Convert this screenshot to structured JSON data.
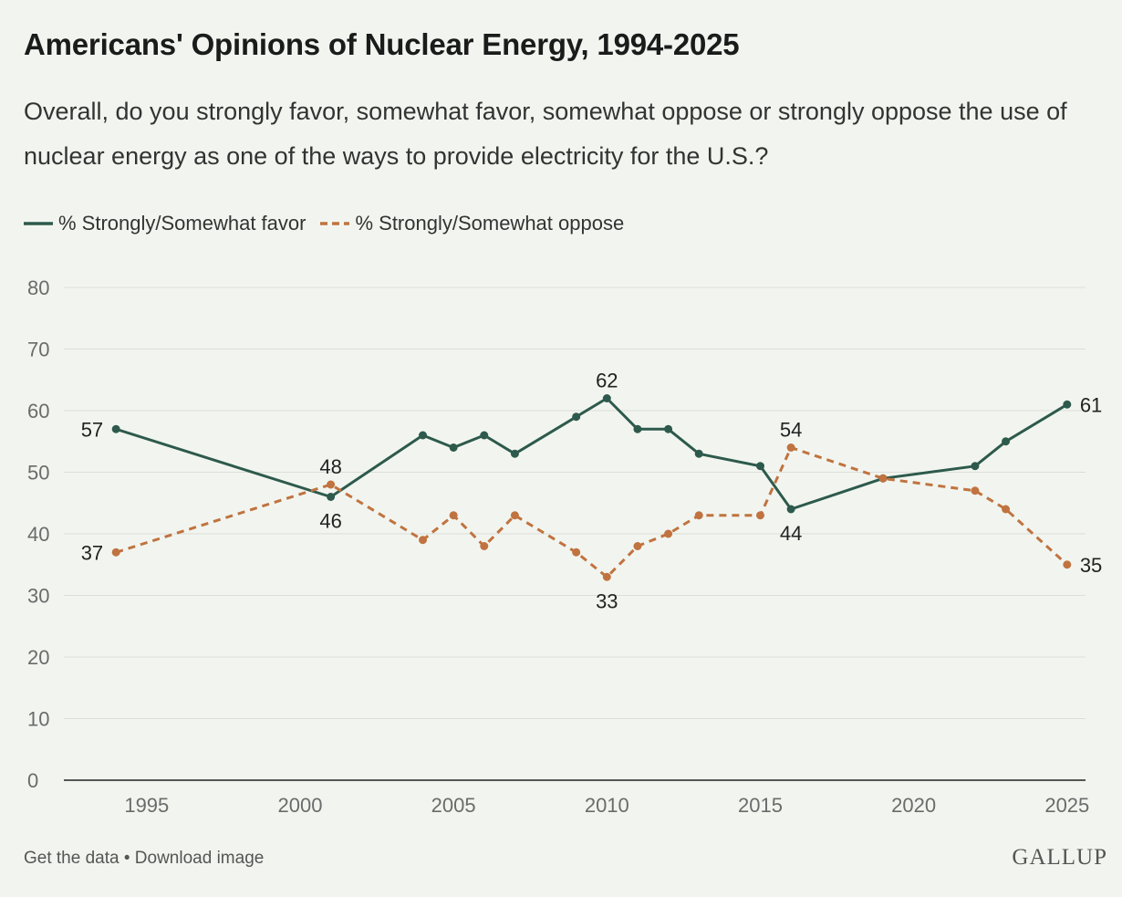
{
  "header": {
    "title": "Americans' Opinions of Nuclear Energy, 1994-2025",
    "subtitle": "Overall, do you strongly favor, somewhat favor, somewhat oppose or strongly oppose the use of nuclear energy as one of the ways to provide electricity for the U.S.?"
  },
  "legend": {
    "favor_label": "% Strongly/Somewhat favor",
    "oppose_label": "% Strongly/Somewhat oppose"
  },
  "footer": {
    "get_data": "Get the data",
    "separator": "•",
    "download": "Download image",
    "logo": "GALLUP"
  },
  "colors": {
    "favor": "#2d5a4c",
    "oppose": "#c07340",
    "grid": "#dcdfd8",
    "axis": "#222222"
  },
  "chart_data": {
    "type": "line",
    "ylim": [
      0,
      80
    ],
    "xlim": [
      1992.3,
      2025.6
    ],
    "yticks": [
      0,
      10,
      20,
      30,
      40,
      50,
      60,
      70,
      80
    ],
    "xticks": [
      1995,
      2000,
      2005,
      2010,
      2015,
      2020,
      2025
    ],
    "grid": true,
    "legend_position": "top-left",
    "series": [
      {
        "name": "% Strongly/Somewhat favor",
        "style": "solid",
        "points": [
          {
            "x": 1994,
            "y": 57,
            "label": "57"
          },
          {
            "x": 2001,
            "y": 46,
            "label": "46"
          },
          {
            "x": 2004,
            "y": 56
          },
          {
            "x": 2005,
            "y": 54
          },
          {
            "x": 2006,
            "y": 56
          },
          {
            "x": 2007,
            "y": 53
          },
          {
            "x": 2009,
            "y": 59
          },
          {
            "x": 2010,
            "y": 62,
            "label": "62"
          },
          {
            "x": 2011,
            "y": 57
          },
          {
            "x": 2012,
            "y": 57
          },
          {
            "x": 2013,
            "y": 53
          },
          {
            "x": 2015,
            "y": 51
          },
          {
            "x": 2016,
            "y": 44,
            "label": "44"
          },
          {
            "x": 2019,
            "y": 49
          },
          {
            "x": 2022,
            "y": 51
          },
          {
            "x": 2023,
            "y": 55
          },
          {
            "x": 2025,
            "y": 61,
            "label": "61"
          }
        ]
      },
      {
        "name": "% Strongly/Somewhat oppose",
        "style": "dashed",
        "points": [
          {
            "x": 1994,
            "y": 37,
            "label": "37"
          },
          {
            "x": 2001,
            "y": 48,
            "label": "48"
          },
          {
            "x": 2004,
            "y": 39
          },
          {
            "x": 2005,
            "y": 43
          },
          {
            "x": 2006,
            "y": 38
          },
          {
            "x": 2007,
            "y": 43
          },
          {
            "x": 2009,
            "y": 37
          },
          {
            "x": 2010,
            "y": 33,
            "label": "33"
          },
          {
            "x": 2011,
            "y": 38
          },
          {
            "x": 2012,
            "y": 40
          },
          {
            "x": 2013,
            "y": 43
          },
          {
            "x": 2015,
            "y": 43
          },
          {
            "x": 2016,
            "y": 54,
            "label": "54"
          },
          {
            "x": 2019,
            "y": 49
          },
          {
            "x": 2022,
            "y": 47
          },
          {
            "x": 2023,
            "y": 44
          },
          {
            "x": 2025,
            "y": 35,
            "label": "35"
          }
        ]
      }
    ]
  }
}
